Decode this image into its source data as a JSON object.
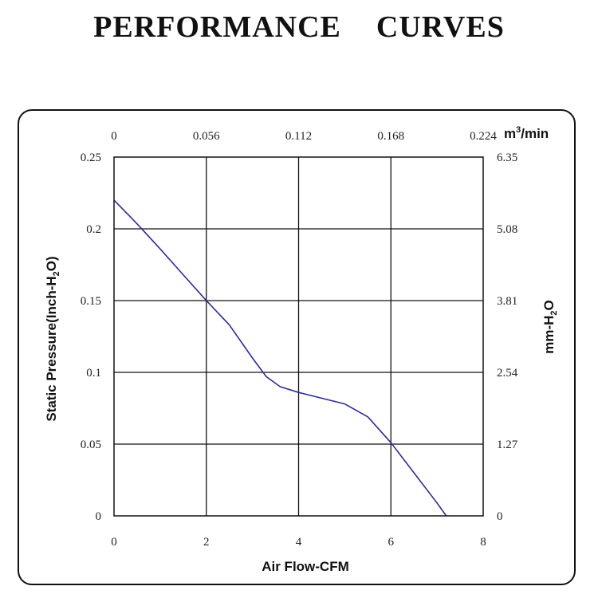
{
  "title_words": [
    "PERFORMANCE",
    "CURVES"
  ],
  "chart_data": {
    "type": "line",
    "xlabel": "Air Flow-CFM",
    "ylabel_main": "Static Pressure(Inch-H",
    "ylabel_sub": "2",
    "ylabel_tail": "O)",
    "ylabel_right_main": "mm-H",
    "ylabel_right_sub": "2",
    "ylabel_right_tail": "O",
    "x2label_main": "m",
    "x2label_sup": "3",
    "x2label_tail": "/min",
    "xlim": [
      0,
      8
    ],
    "ylim": [
      0,
      0.25
    ],
    "x_ticks": [
      "0",
      "2",
      "4",
      "6",
      "8"
    ],
    "y_ticks": [
      "0",
      "0.05",
      "0.1",
      "0.15",
      "0.2",
      "0.25"
    ],
    "x2_ticks": [
      "0",
      "0.056",
      "0.112",
      "0.168",
      "0.224"
    ],
    "y2_ticks": [
      "0",
      "1.27",
      "2.54",
      "3.81",
      "5.08",
      "6.35"
    ],
    "grid": true,
    "series": [
      {
        "name": "Static Pressure",
        "color": "#2b2b9e",
        "x": [
          0,
          0.5,
          1,
          1.5,
          2,
          2.5,
          3,
          3.3,
          3.6,
          4,
          4.5,
          5,
          5.5,
          6,
          6.5,
          7,
          7.2
        ],
        "y": [
          0.22,
          0.2035,
          0.186,
          0.168,
          0.15,
          0.133,
          0.11,
          0.097,
          0.09,
          0.086,
          0.082,
          0.078,
          0.069,
          0.051,
          0.03,
          0.009,
          0
        ]
      }
    ]
  }
}
